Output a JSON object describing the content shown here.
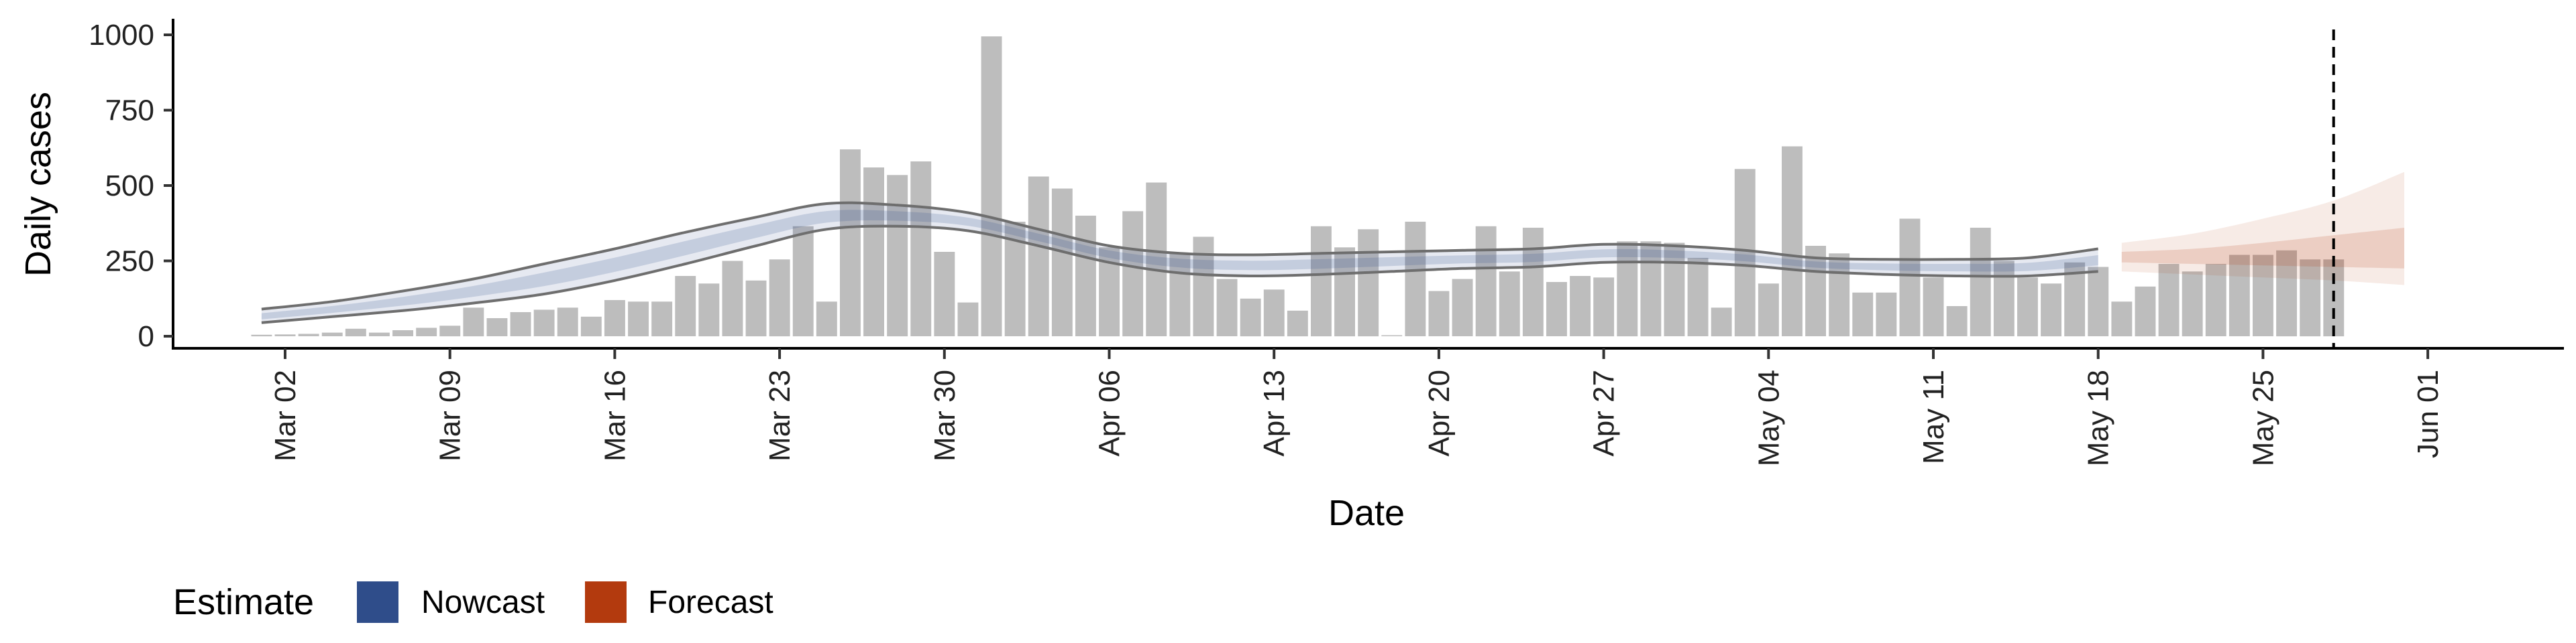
{
  "chart_data": {
    "type": "bar",
    "xlabel": "Date",
    "ylabel": "Daily cases",
    "ylim": [
      -40,
      1050
    ],
    "yticks": [
      0,
      250,
      500,
      750,
      1000
    ],
    "x_start": "2020-02-29",
    "xticks": [
      "Mar 02",
      "Mar 09",
      "Mar 16",
      "Mar 23",
      "Mar 30",
      "Apr 06",
      "Apr 13",
      "Apr 20",
      "Apr 27",
      "May 04",
      "May 11",
      "May 18",
      "May 25",
      "Jun 01"
    ],
    "vline_date": "May 28",
    "bars": {
      "dates": [
        "Mar 01",
        "Mar 02",
        "Mar 03",
        "Mar 04",
        "Mar 05",
        "Mar 06",
        "Mar 07",
        "Mar 08",
        "Mar 09",
        "Mar 10",
        "Mar 11",
        "Mar 12",
        "Mar 13",
        "Mar 14",
        "Mar 15",
        "Mar 16",
        "Mar 17",
        "Mar 18",
        "Mar 19",
        "Mar 20",
        "Mar 21",
        "Mar 22",
        "Mar 23",
        "Mar 24",
        "Mar 25",
        "Mar 26",
        "Mar 27",
        "Mar 28",
        "Mar 29",
        "Mar 30",
        "Mar 31",
        "Apr 01",
        "Apr 02",
        "Apr 03",
        "Apr 04",
        "Apr 05",
        "Apr 06",
        "Apr 07",
        "Apr 08",
        "Apr 09",
        "Apr 10",
        "Apr 11",
        "Apr 12",
        "Apr 13",
        "Apr 14",
        "Apr 15",
        "Apr 16",
        "Apr 17",
        "Apr 18",
        "Apr 19",
        "Apr 20",
        "Apr 21",
        "Apr 22",
        "Apr 23",
        "Apr 24",
        "Apr 25",
        "Apr 26",
        "Apr 27",
        "Apr 28",
        "Apr 29",
        "Apr 30",
        "May 01",
        "May 02",
        "May 03",
        "May 04",
        "May 05",
        "May 06",
        "May 07",
        "May 08",
        "May 09",
        "May 10",
        "May 11",
        "May 12",
        "May 13",
        "May 14",
        "May 15",
        "May 16",
        "May 17",
        "May 18",
        "May 19",
        "May 20",
        "May 21",
        "May 22",
        "May 23",
        "May 24",
        "May 25",
        "May 26",
        "May 27",
        "May 28"
      ],
      "values": [
        5,
        6,
        8,
        12,
        25,
        12,
        20,
        28,
        35,
        95,
        60,
        80,
        88,
        95,
        65,
        120,
        115,
        115,
        200,
        175,
        250,
        185,
        255,
        365,
        115,
        620,
        560,
        535,
        580,
        280,
        112,
        995,
        380,
        530,
        490,
        400,
        295,
        415,
        510,
        275,
        330,
        190,
        125,
        155,
        85,
        365,
        295,
        355,
        0,
        380,
        150,
        190,
        365,
        215,
        360,
        180,
        200,
        195,
        315,
        315,
        310,
        260,
        95,
        555,
        175,
        630,
        300,
        275,
        145,
        145,
        390,
        195,
        100,
        360,
        250,
        195,
        175,
        245,
        230,
        115,
        165,
        240,
        215,
        240,
        270,
        270,
        285,
        255,
        255
      ]
    },
    "series": [
      {
        "name": "Nowcast",
        "color": "#2F4D8A",
        "dates": [
          "Mar 01",
          "Mar 04",
          "Mar 07",
          "Mar 10",
          "Mar 13",
          "Mar 16",
          "Mar 19",
          "Mar 22",
          "Mar 25",
          "Mar 28",
          "Mar 31",
          "Apr 03",
          "Apr 06",
          "Apr 09",
          "Apr 12",
          "Apr 15",
          "Apr 18",
          "Apr 21",
          "Apr 24",
          "Apr 27",
          "Apr 30",
          "May 03",
          "May 06",
          "May 09",
          "May 12",
          "May 15",
          "May 18"
        ],
        "upper": [
          90,
          115,
          150,
          190,
          240,
          290,
          345,
          395,
          440,
          435,
          410,
          355,
          300,
          275,
          270,
          275,
          280,
          285,
          290,
          305,
          300,
          285,
          260,
          255,
          255,
          260,
          290
        ],
        "lower": [
          45,
          65,
          85,
          110,
          140,
          185,
          240,
          300,
          355,
          365,
          350,
          300,
          245,
          210,
          200,
          205,
          215,
          225,
          230,
          245,
          245,
          235,
          215,
          205,
          200,
          200,
          215
        ],
        "median": [
          65,
          88,
          115,
          148,
          188,
          237,
          292,
          348,
          395,
          398,
          380,
          328,
          272,
          243,
          235,
          240,
          248,
          255,
          260,
          275,
          272,
          260,
          238,
          230,
          228,
          230,
          252
        ]
      },
      {
        "name": "Forecast",
        "color": "#B33A0E",
        "dates": [
          "May 19",
          "May 22",
          "May 25",
          "May 28",
          "May 31"
        ],
        "outer_upper": [
          310,
          340,
          390,
          450,
          545
        ],
        "outer_lower": [
          215,
          205,
          195,
          185,
          170
        ],
        "inner_upper": [
          280,
          290,
          310,
          335,
          360
        ],
        "inner_lower": [
          245,
          240,
          235,
          230,
          225
        ]
      }
    ]
  },
  "legend": {
    "title": "Estimate",
    "items": [
      {
        "label": "Nowcast",
        "color": "#2F4D8A"
      },
      {
        "label": "Forecast",
        "color": "#B33A0E"
      }
    ]
  }
}
